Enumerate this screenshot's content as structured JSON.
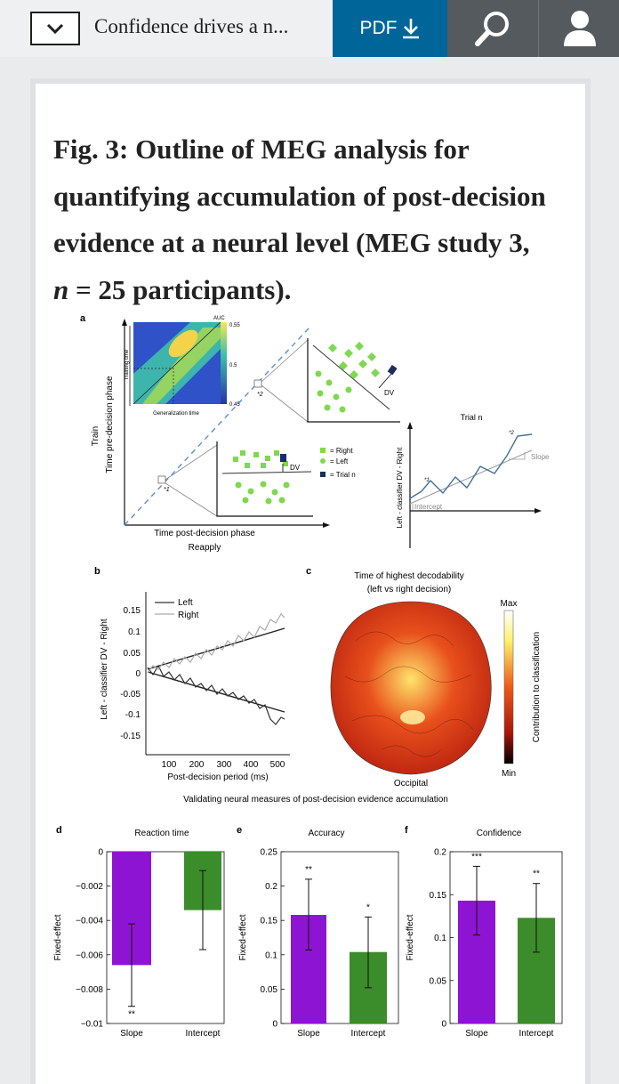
{
  "topbar": {
    "article_title": "Confidence drives a n...",
    "pdf_label": "PDF",
    "icons": {
      "dropdown": "chevron-down-icon",
      "download": "download-icon",
      "search": "search-icon",
      "user": "user-icon"
    }
  },
  "figure": {
    "title_start": "Fig. 3: Outline of MEG analysis for quantifying accumulation of post-decision evidence at a neural level (MEG study 3, ",
    "title_n": "n",
    "title_end": " = 25 participants)."
  },
  "panel_a": {
    "letter": "a",
    "auc_label": "AUC",
    "auc_ticks": [
      "0.55",
      "0.5",
      "0.45"
    ],
    "training_time": "Training time",
    "generalization_time": "Generalization time",
    "train": "Train",
    "y_label": "Time pre-decision phase",
    "x_label": "Time post-decision phase",
    "reapply": "Reapply",
    "marker1": "*1",
    "marker2": "*2",
    "dv_label": "DV",
    "legend": [
      "= Right",
      "= Left",
      "= Trial n"
    ],
    "trial_label": "Trial n",
    "slope_label": "Slope",
    "intercept_label": "Intercept",
    "dv_axis_label": "Left - classifier DV - Right"
  },
  "panel_b": {
    "letter": "b",
    "y_label": "Left - classifier DV - Right",
    "x_label": "Post-decision period (ms)",
    "legend": [
      "Left",
      "Right"
    ],
    "y_ticks": [
      "0.15",
      "0.1",
      "0.05",
      "0",
      "-0.05",
      "-0.1",
      "-0.15"
    ],
    "x_ticks": [
      "100",
      "200",
      "300",
      "400",
      "500"
    ]
  },
  "panel_c": {
    "letter": "c",
    "title_line1": "Time of highest decodability",
    "title_line2": "(left vs right decision)",
    "colorbar_max": "Max",
    "colorbar_min": "Min",
    "colorbar_label": "Contribution to classification",
    "bottom_label": "Occipital"
  },
  "caption": "Validating neural measures of post-decision evidence accumulation",
  "chart_data": [
    {
      "type": "bar",
      "panel": "d",
      "title": "Reaction time",
      "ylabel": "Fixed-effect",
      "categories": [
        "Slope",
        "Intercept"
      ],
      "values": [
        -0.0066,
        -0.0034
      ],
      "error_low": [
        -0.009,
        -0.0057
      ],
      "error_high": [
        -0.0042,
        -0.0011
      ],
      "significance": [
        "**",
        ""
      ],
      "colors": [
        "#8e14d4",
        "#3b8c2a"
      ],
      "ylim": [
        -0.01,
        0
      ],
      "yticks": [
        0,
        -0.002,
        -0.004,
        -0.006,
        -0.008,
        -0.01
      ],
      "ytick_labels": [
        "0",
        "−0.002",
        "−0.004",
        "−0.006",
        "−0.008",
        "−0.01"
      ]
    },
    {
      "type": "bar",
      "panel": "e",
      "title": "Accuracy",
      "ylabel": "Fixed-effect",
      "categories": [
        "Slope",
        "Intercept"
      ],
      "values": [
        0.158,
        0.104
      ],
      "error_low": [
        0.107,
        0.052
      ],
      "error_high": [
        0.21,
        0.155
      ],
      "significance": [
        "**",
        "*"
      ],
      "colors": [
        "#8e14d4",
        "#3b8c2a"
      ],
      "ylim": [
        0,
        0.25
      ],
      "yticks": [
        0,
        0.05,
        0.1,
        0.15,
        0.2,
        0.25
      ],
      "ytick_labels": [
        "0",
        "0.05",
        "0.1",
        "0.15",
        "0.2",
        "0.25"
      ]
    },
    {
      "type": "bar",
      "panel": "f",
      "title": "Confidence",
      "ylabel": "Fixed-effect",
      "categories": [
        "Slope",
        "Intercept"
      ],
      "values": [
        0.143,
        0.123
      ],
      "error_low": [
        0.103,
        0.083
      ],
      "error_high": [
        0.183,
        0.163
      ],
      "significance": [
        "***",
        "**"
      ],
      "colors": [
        "#8e14d4",
        "#3b8c2a"
      ],
      "ylim": [
        0,
        0.2
      ],
      "yticks": [
        0,
        0.05,
        0.1,
        0.15,
        0.2
      ],
      "ytick_labels": [
        "0",
        "0.05",
        "0.1",
        "0.15",
        "0.2"
      ]
    }
  ]
}
